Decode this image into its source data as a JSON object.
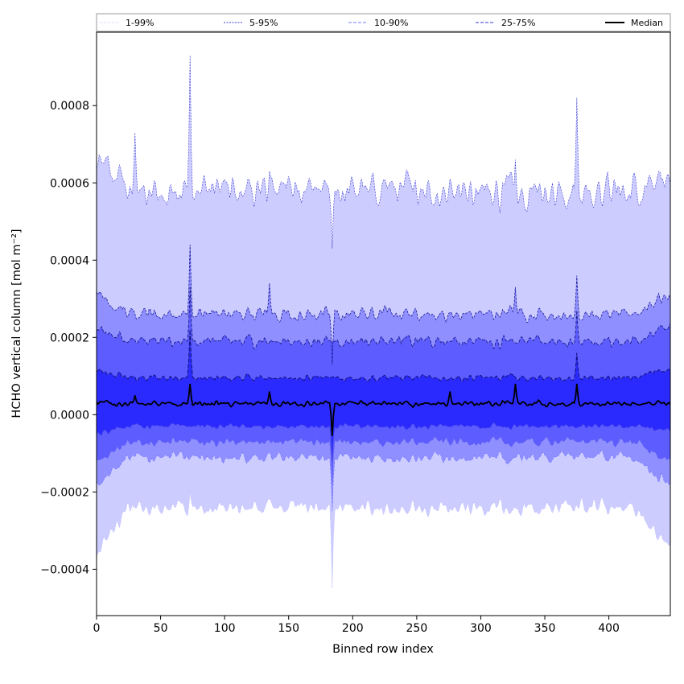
{
  "chart_data": {
    "type": "area",
    "xlabel": "Binned row index",
    "ylabel": "HCHO vertical column [mol m⁻²]",
    "xlim": [
      0,
      448
    ],
    "ylim": [
      -0.00052,
      0.00099
    ],
    "x_ticks": [
      0,
      50,
      100,
      150,
      200,
      250,
      300,
      350,
      400
    ],
    "x_tick_labels": [
      "0",
      "50",
      "100",
      "150",
      "200",
      "250",
      "300",
      "350",
      "400"
    ],
    "y_ticks": [
      -0.0004,
      -0.0002,
      0.0,
      0.0002,
      0.0004,
      0.0006,
      0.0008
    ],
    "y_tick_labels": [
      "−0.0004",
      "−0.0002",
      "0.0000",
      "0.0002",
      "0.0004",
      "0.0006",
      "0.0008"
    ],
    "grid": false,
    "legend_position": "top, above plot, single row",
    "legend": [
      {
        "label": "1-99%",
        "style": "dotted",
        "color": "#c0c0ff",
        "fill": "#ccccff"
      },
      {
        "label": "5-95%",
        "style": "dashed-thin",
        "color": "#3333cc",
        "fill": "#ccccff"
      },
      {
        "label": "10-90%",
        "style": "dashed",
        "color": "#7777ff",
        "fill": "#8f8fff"
      },
      {
        "label": "25-75%",
        "style": "dashed",
        "color": "#3333dd",
        "fill": "#5c5cff"
      },
      {
        "label": "Median",
        "style": "solid",
        "color": "#000000",
        "fill": ""
      }
    ],
    "band_colors": {
      "p1_99": "#ccccff",
      "p5_95": "#ccccff",
      "p10_90": "#8f8fff",
      "p25_75": "#5c5cff",
      "core": "#2a2aff"
    },
    "profiles": {
      "p99": {
        "base": 0.00058,
        "edge_start": 0.00067,
        "edge_end": 0.00062,
        "noise": 6e-05
      },
      "p95": {
        "base": 0.00026,
        "edge_start": 0.0003,
        "edge_end": 0.00031,
        "noise": 2.5e-05
      },
      "p90": {
        "base": 0.00019,
        "edge_start": 0.00022,
        "edge_end": 0.00023,
        "noise": 2e-05
      },
      "p75": {
        "base": 9.5e-05,
        "edge_start": 0.00011,
        "edge_end": 0.00012,
        "noise": 1.2e-05
      },
      "median": {
        "base": 2.8e-05,
        "edge_start": 3e-05,
        "edge_end": 3e-05,
        "noise": 1e-05
      },
      "p25": {
        "base": -3e-05,
        "edge_start": -5e-05,
        "edge_end": -4e-05,
        "noise": 1e-05
      },
      "p10": {
        "base": -7e-05,
        "edge_start": -0.00012,
        "edge_end": -0.00012,
        "noise": 1.5e-05
      },
      "p5": {
        "base": -0.00011,
        "edge_start": -0.00018,
        "edge_end": -0.00018,
        "noise": 2e-05
      },
      "p1": {
        "base": -0.00024,
        "edge_start": -0.00036,
        "edge_end": -0.00034,
        "noise": 3e-05
      }
    },
    "spikes": [
      {
        "x": 73,
        "p99": 0.00093,
        "p95": 0.00044,
        "p90": 0.00033,
        "p75": 0.00022,
        "median": 8e-05,
        "p1": -0.0002
      },
      {
        "x": 184,
        "p99": 0.00043,
        "p95": 0.00013,
        "median": -5.5e-05,
        "p25": -0.00012,
        "p10": -0.00018,
        "p5": -0.00025,
        "p1": -0.00045
      },
      {
        "x": 375,
        "p99": 0.00082,
        "p95": 0.00036,
        "p90": 0.00027,
        "p75": 0.00016,
        "median": 8e-05
      },
      {
        "x": 327,
        "p99": 0.00066,
        "p95": 0.00033,
        "median": 8e-05
      },
      {
        "x": 135,
        "p99": 0.00063,
        "p95": 0.00034,
        "median": 6e-05
      },
      {
        "x": 30,
        "p99": 0.00073,
        "median": 5e-05
      },
      {
        "x": 276,
        "p99": 0.00061,
        "median": 6e-05
      }
    ]
  }
}
